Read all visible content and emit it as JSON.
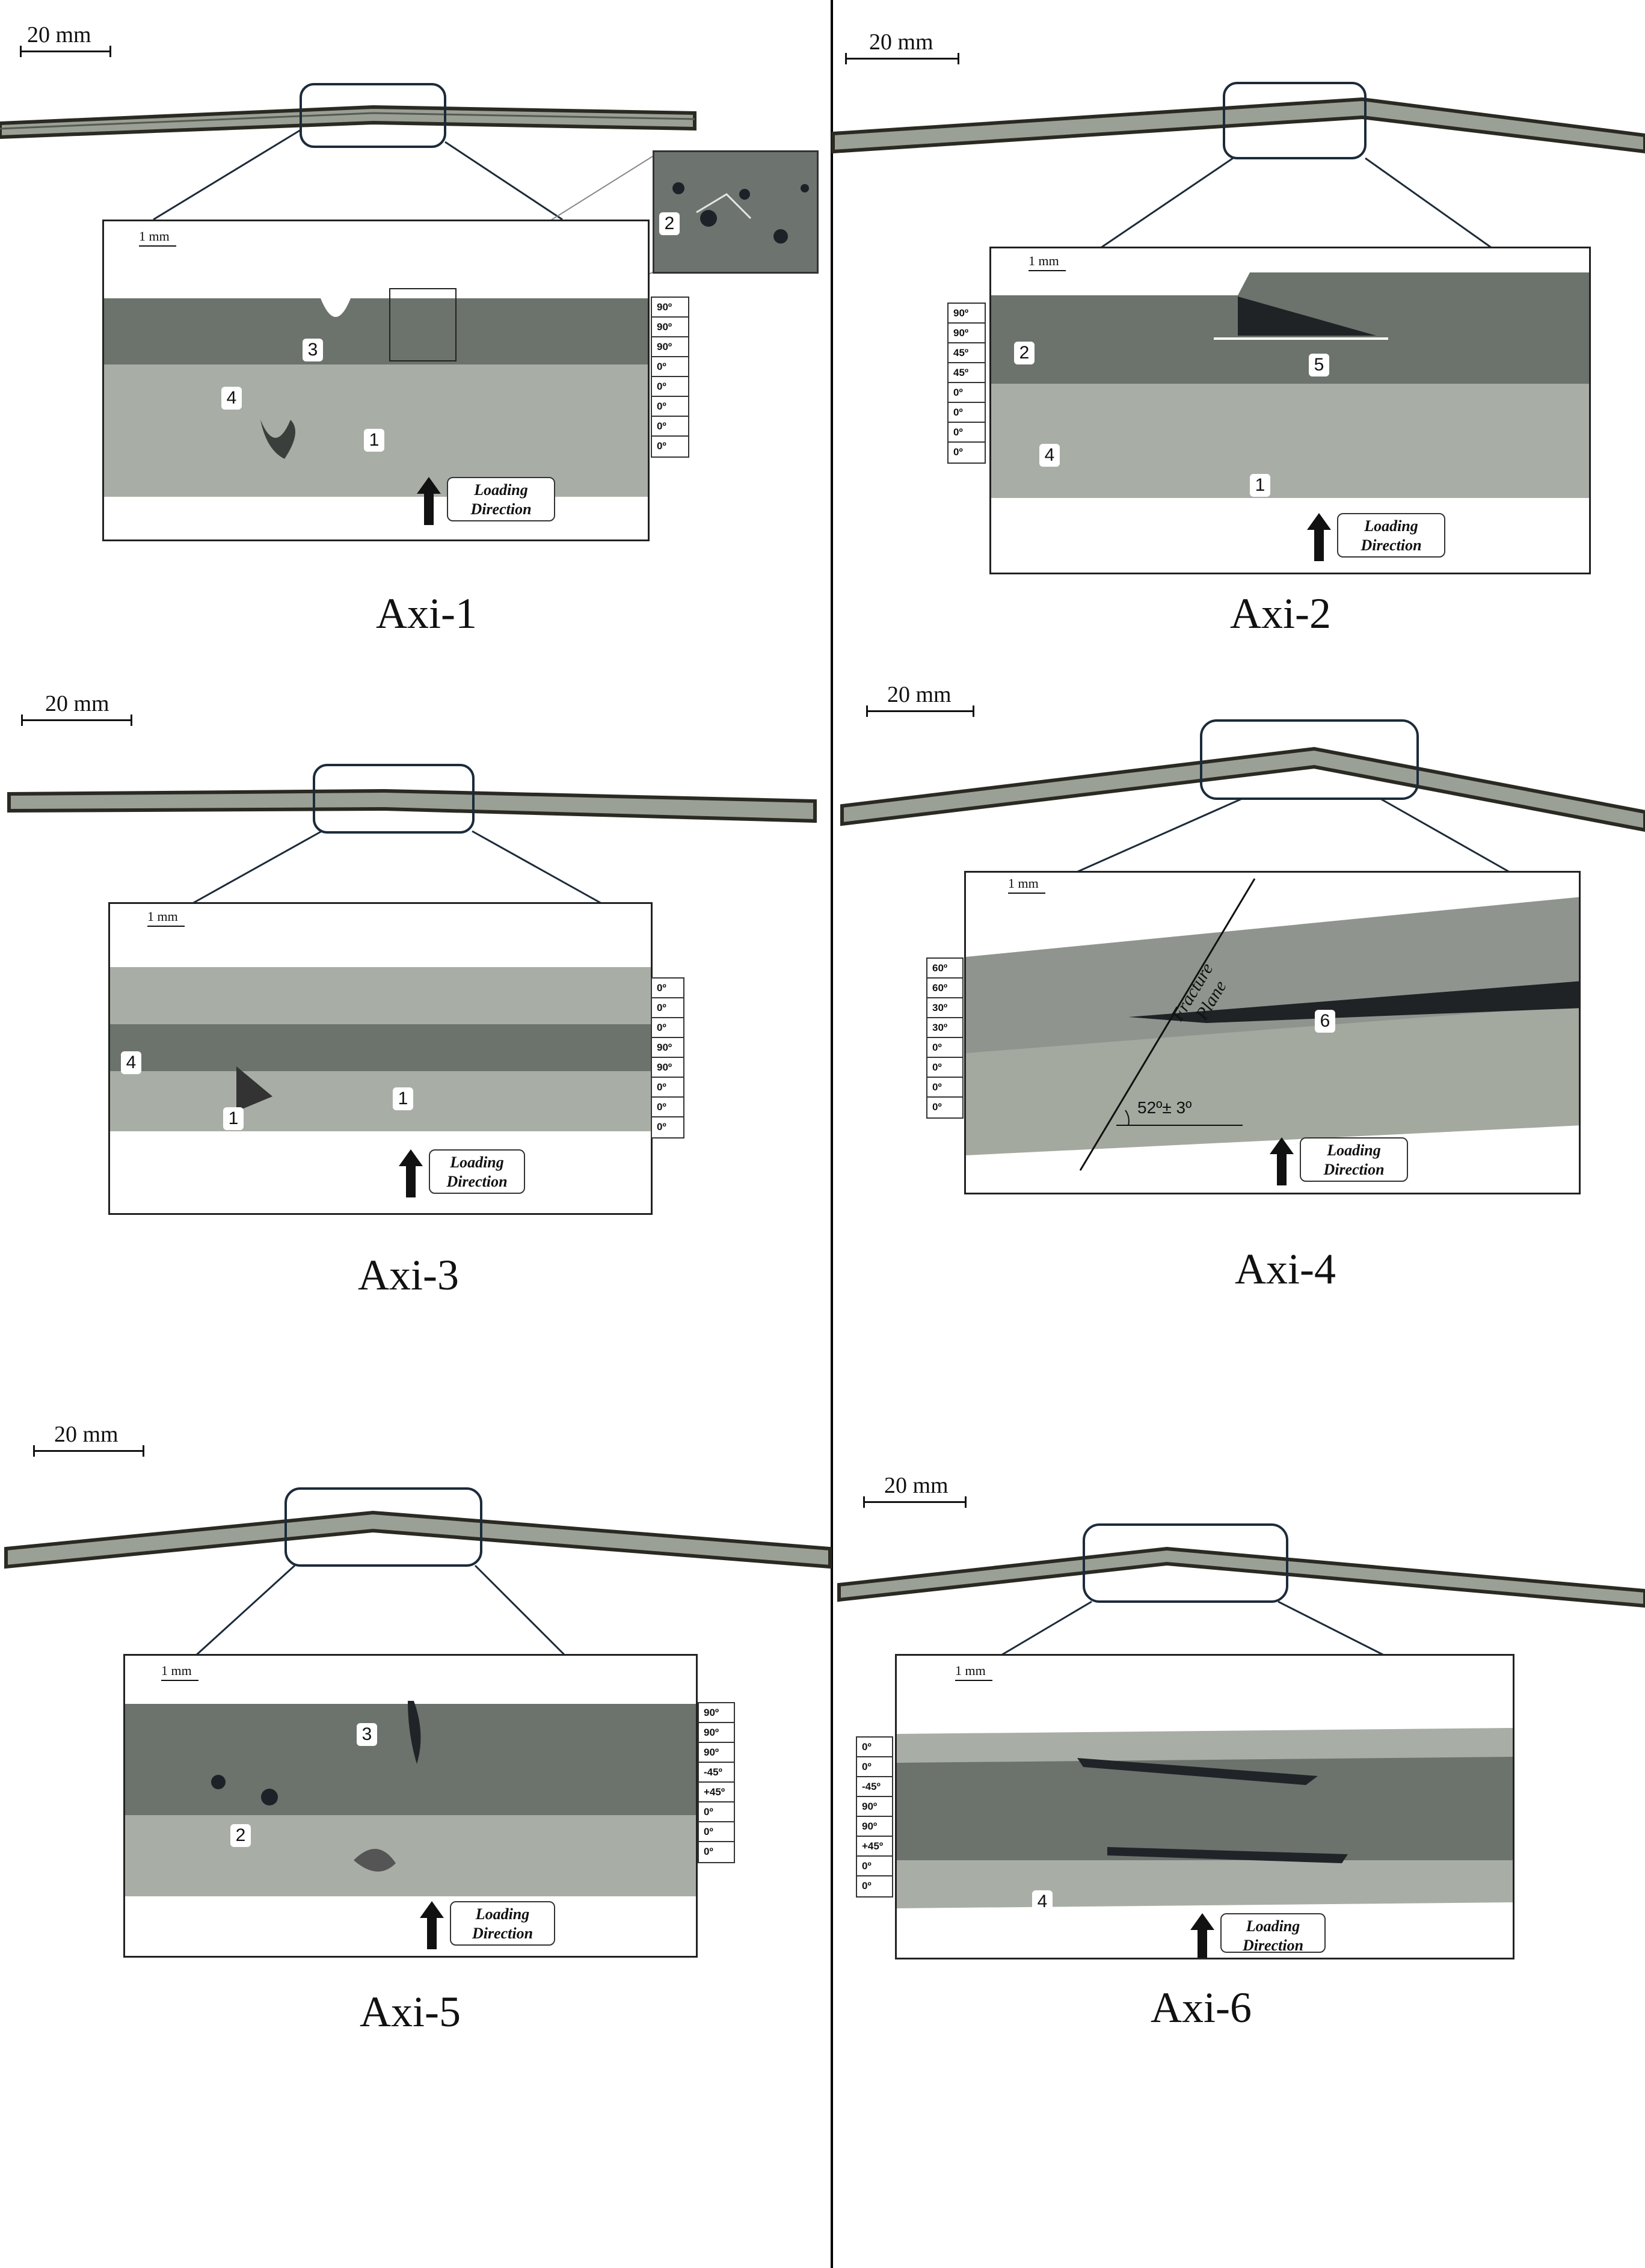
{
  "panels": [
    {
      "caption": "Axi-1",
      "scale_main": "20 mm",
      "scale_detail": "1 mm",
      "loading": [
        "Loading",
        "Direction"
      ],
      "layers": [
        "90º",
        "90º",
        "90º",
        "0º",
        "0º",
        "0º",
        "0º",
        "0º"
      ],
      "markers": [
        "3",
        "4",
        "1",
        "2"
      ]
    },
    {
      "caption": "Axi-2",
      "scale_main": "20 mm",
      "scale_detail": "1 mm",
      "loading": [
        "Loading",
        "Direction"
      ],
      "layers": [
        "90º",
        "90º",
        "45º",
        "45º",
        "0º",
        "0º",
        "0º",
        "0º"
      ],
      "markers": [
        "2",
        "5",
        "4",
        "1"
      ]
    },
    {
      "caption": "Axi-3",
      "scale_main": "20 mm",
      "scale_detail": "1 mm",
      "loading": [
        "Loading",
        "Direction"
      ],
      "layers": [
        "0º",
        "0º",
        "0º",
        "90º",
        "90º",
        "0º",
        "0º",
        "0º"
      ],
      "markers": [
        "4",
        "1",
        "1"
      ]
    },
    {
      "caption": "Axi-4",
      "scale_main": "20 mm",
      "scale_detail": "1 mm",
      "loading": [
        "Loading",
        "Direction"
      ],
      "layers": [
        "60º",
        "60º",
        "30º",
        "30º",
        "0º",
        "0º",
        "0º",
        "0º"
      ],
      "markers": [
        "6"
      ],
      "fracture_label": [
        "Fracture",
        "Plane"
      ],
      "angle_label": "52º± 3º"
    },
    {
      "caption": "Axi-5",
      "scale_main": "20 mm",
      "scale_detail": "1 mm",
      "loading": [
        "Loading",
        "Direction"
      ],
      "layers": [
        "90º",
        "90º",
        "90º",
        "-45º",
        "+45º",
        "0º",
        "0º",
        "0º"
      ],
      "markers": [
        "3",
        "2"
      ]
    },
    {
      "caption": "Axi-6",
      "scale_main": "20 mm",
      "scale_detail": "1 mm",
      "loading": [
        "Loading",
        "Direction"
      ],
      "layers": [
        "0º",
        "0º",
        "-45º",
        "90º",
        "90º",
        "+45º",
        "0º",
        "0º"
      ],
      "markers": [
        "4"
      ]
    }
  ],
  "colors": {
    "specimen_light": "#a9b0a6",
    "specimen_dark": "#5e6660",
    "edge": "#2b2a22",
    "frame": "#1c2b3a"
  }
}
